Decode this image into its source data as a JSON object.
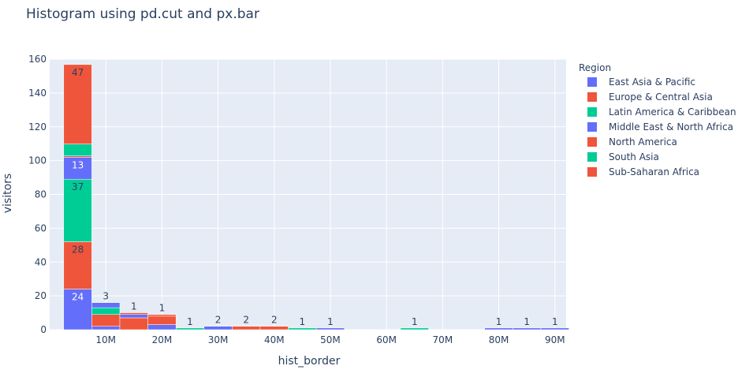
{
  "chart_data": {
    "type": "bar",
    "title": "Histogram using pd.cut and px.bar",
    "xlabel": "hist_border",
    "ylabel": "visitors",
    "legend_title": "Region",
    "legend_position": "right",
    "ylim": [
      0,
      160
    ],
    "xlim": [
      0,
      92000000
    ],
    "bin_width": 5000000,
    "y_ticks": [
      0,
      20,
      40,
      60,
      80,
      100,
      120,
      140,
      160
    ],
    "x_ticks": [
      {
        "value": 10000000,
        "label": "10M"
      },
      {
        "value": 20000000,
        "label": "20M"
      },
      {
        "value": 30000000,
        "label": "30M"
      },
      {
        "value": 40000000,
        "label": "40M"
      },
      {
        "value": 50000000,
        "label": "50M"
      },
      {
        "value": 60000000,
        "label": "60M"
      },
      {
        "value": 70000000,
        "label": "70M"
      },
      {
        "value": 80000000,
        "label": "80M"
      },
      {
        "value": 90000000,
        "label": "90M"
      }
    ],
    "grid": true,
    "bars": [
      {
        "bin": 5000000,
        "region": "East Asia & Pacific",
        "value": 24,
        "label": "24"
      },
      {
        "bin": 5000000,
        "region": "Europe & Central Asia",
        "value": 28,
        "label": "28"
      },
      {
        "bin": 5000000,
        "region": "Latin America & Caribbean",
        "value": 37,
        "label": "37"
      },
      {
        "bin": 5000000,
        "region": "Middle East & North Africa",
        "value": 13,
        "label": "13"
      },
      {
        "bin": 5000000,
        "region": "North America",
        "value": 0.8,
        "label": ""
      },
      {
        "bin": 5000000,
        "region": "South Asia",
        "value": 7,
        "label": ""
      },
      {
        "bin": 5000000,
        "region": "Sub-Saharan Africa",
        "value": 47,
        "label": "47"
      },
      {
        "bin": 10000000,
        "region": "East Asia & Pacific",
        "value": 2,
        "label": ""
      },
      {
        "bin": 10000000,
        "region": "Europe & Central Asia",
        "value": 7,
        "label": ""
      },
      {
        "bin": 10000000,
        "region": "Latin America & Caribbean",
        "value": 4,
        "label": ""
      },
      {
        "bin": 10000000,
        "region": "Middle East & North Africa",
        "value": 3,
        "label": "3"
      },
      {
        "bin": 15000000,
        "region": "Europe & Central Asia",
        "value": 7,
        "label": ""
      },
      {
        "bin": 15000000,
        "region": "Middle East & North Africa",
        "value": 2,
        "label": ""
      },
      {
        "bin": 15000000,
        "region": "Sub-Saharan Africa",
        "value": 1,
        "label": "1"
      },
      {
        "bin": 20000000,
        "region": "East Asia & Pacific",
        "value": 3,
        "label": ""
      },
      {
        "bin": 20000000,
        "region": "Europe & Central Asia",
        "value": 5,
        "label": ""
      },
      {
        "bin": 20000000,
        "region": "Sub-Saharan Africa",
        "value": 1,
        "label": "1"
      },
      {
        "bin": 25000000,
        "region": "Latin America & Caribbean",
        "value": 1,
        "label": "1"
      },
      {
        "bin": 30000000,
        "region": "East Asia & Pacific",
        "value": 2,
        "label": "2"
      },
      {
        "bin": 35000000,
        "region": "Europe & Central Asia",
        "value": 2,
        "label": "2"
      },
      {
        "bin": 40000000,
        "region": "Sub-Saharan Africa",
        "value": 2,
        "label": "2"
      },
      {
        "bin": 45000000,
        "region": "Latin America & Caribbean",
        "value": 1,
        "label": "1"
      },
      {
        "bin": 50000000,
        "region": "East Asia & Pacific",
        "value": 1,
        "label": "1"
      },
      {
        "bin": 65000000,
        "region": "Latin America & Caribbean",
        "value": 1,
        "label": "1"
      },
      {
        "bin": 80000000,
        "region": "East Asia & Pacific",
        "value": 1,
        "label": "1"
      },
      {
        "bin": 85000000,
        "region": "East Asia & Pacific",
        "value": 1,
        "label": "1"
      },
      {
        "bin": 90000000,
        "region": "East Asia & Pacific",
        "value": 1,
        "label": "1"
      }
    ],
    "series": [
      {
        "name": "East Asia & Pacific",
        "color": "#636efa"
      },
      {
        "name": "Europe & Central Asia",
        "color": "#ef553b"
      },
      {
        "name": "Latin America & Caribbean",
        "color": "#00cc96"
      },
      {
        "name": "Middle East & North Africa",
        "color": "#636efa"
      },
      {
        "name": "North America",
        "color": "#ef553b"
      },
      {
        "name": "South Asia",
        "color": "#00cc96"
      },
      {
        "name": "Sub-Saharan Africa",
        "color": "#ef553b"
      }
    ]
  },
  "colors": {
    "plot_background": "#e5ecf6",
    "grid": "#ffffff",
    "text": "#2a3f5f",
    "bar_outline": "#ffffff"
  }
}
